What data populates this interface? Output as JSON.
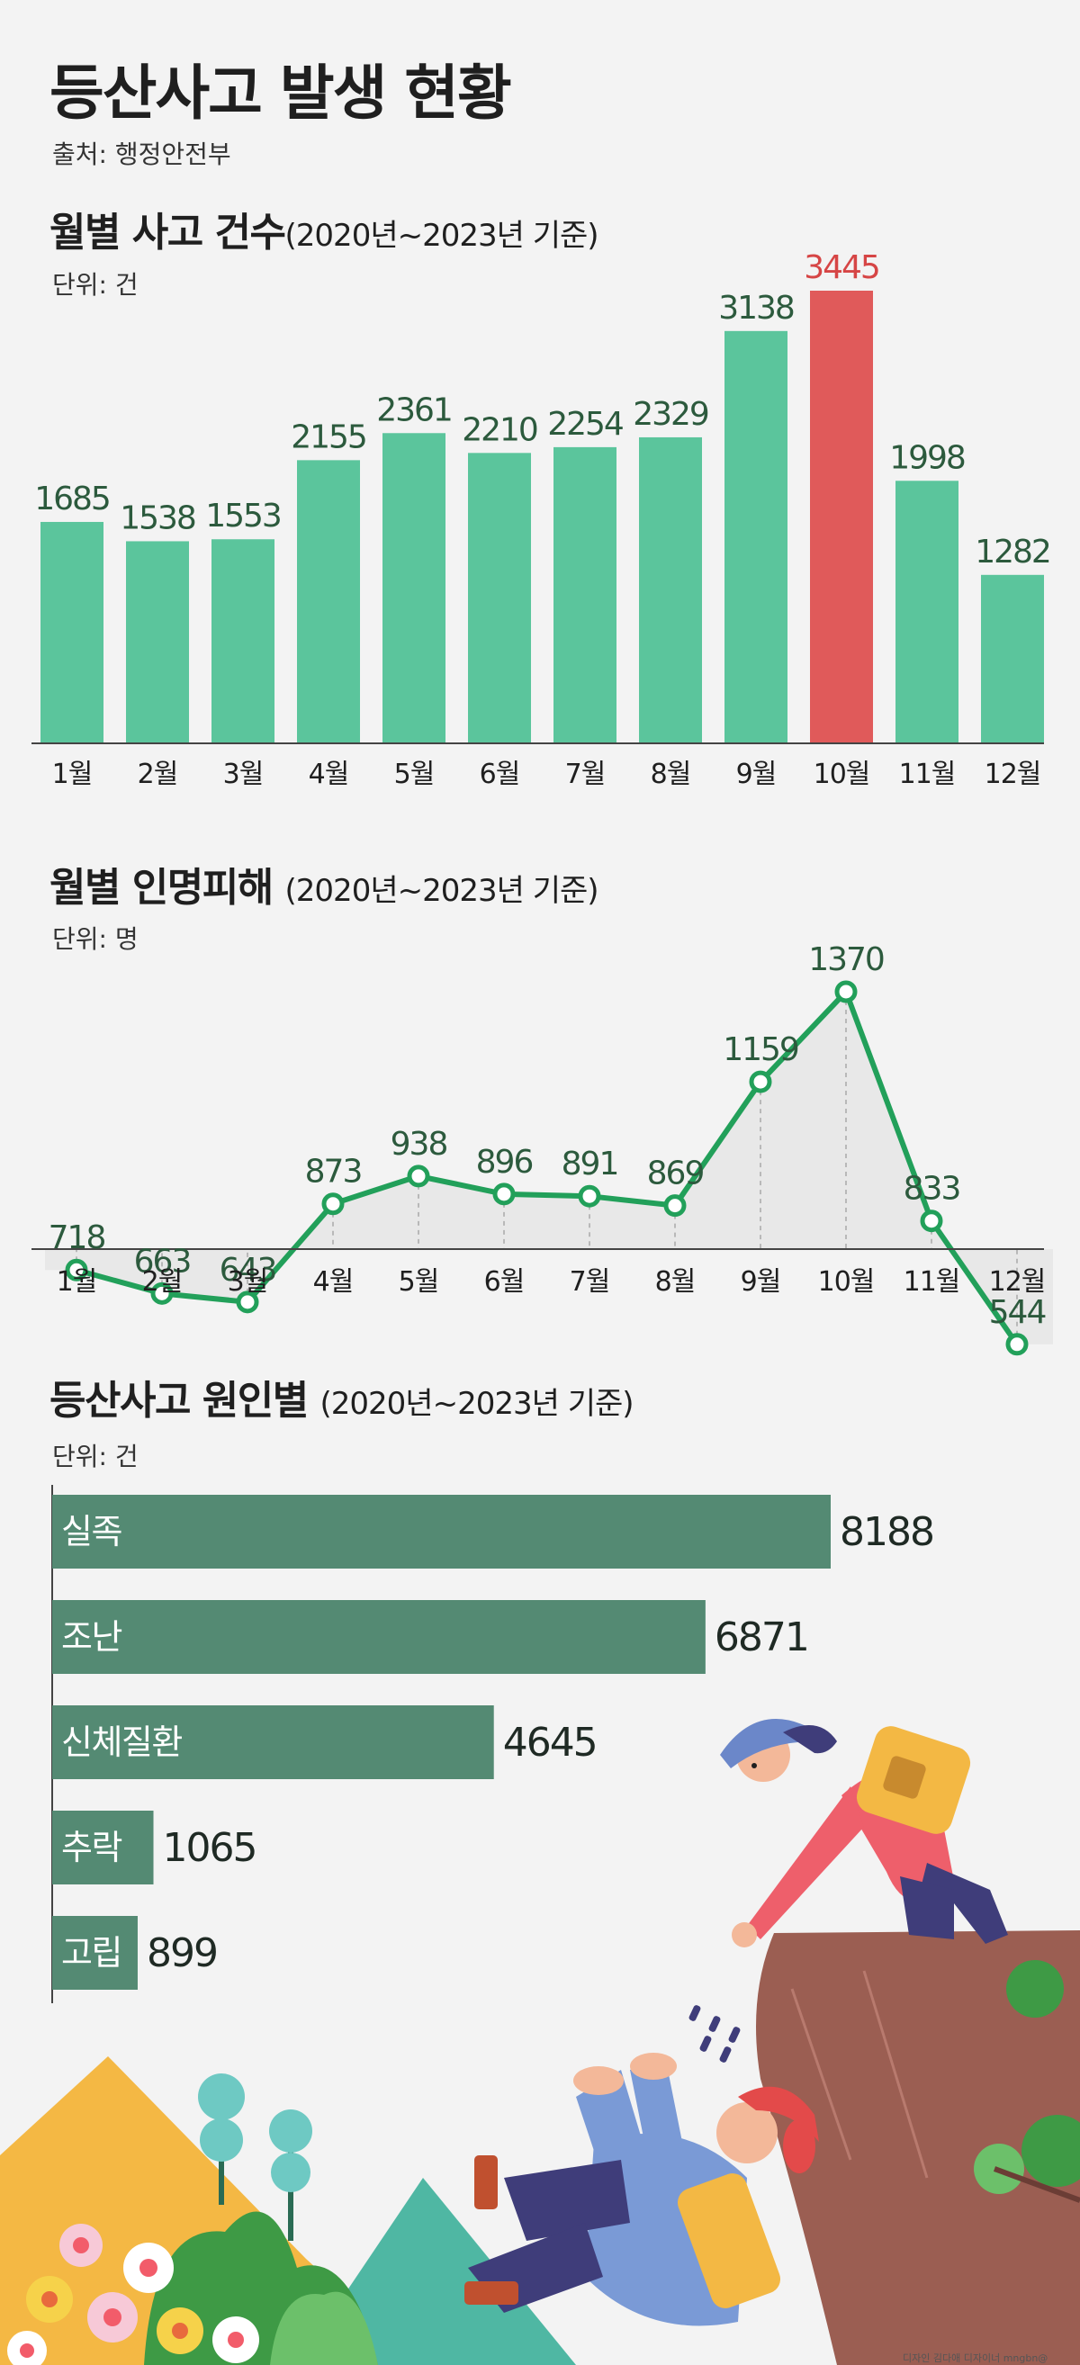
{
  "title": "등산사고 발생 현황",
  "source": "출처: 행정안전부",
  "credit": "디자인 김다애 디자이너 mngbn@",
  "colors": {
    "bar": "#5bc59c",
    "highlight": "#e05a5a",
    "highlight_label": "#d64545",
    "label": "#2c5a3d",
    "line": "#22a05a",
    "area": "#e8e8e8",
    "hbar": "#548a73",
    "axis": "#444444"
  },
  "sections": {
    "monthly_accidents": {
      "title": "월별 사고 건수",
      "subtitle": "(2020년~2023년 기준)",
      "unit": "단위: 건"
    },
    "monthly_casualties": {
      "title": "월별 인명피해",
      "subtitle": "(2020년~2023년 기준)",
      "unit": "단위: 명"
    },
    "causes": {
      "title": "등산사고 원인별",
      "subtitle": "(2020년~2023년 기준)",
      "unit": "단위: 건"
    }
  },
  "chart_data": [
    {
      "type": "bar",
      "categories": [
        "1월",
        "2월",
        "3월",
        "4월",
        "5월",
        "6월",
        "7월",
        "8월",
        "9월",
        "10월",
        "11월",
        "12월"
      ],
      "values": [
        1685,
        1538,
        1553,
        2155,
        2361,
        2210,
        2254,
        2329,
        3138,
        3445,
        1998,
        1282
      ],
      "highlight_index": 9,
      "title": "월별 사고 건수",
      "ylim": [
        0,
        3445
      ],
      "grid": false
    },
    {
      "type": "line",
      "categories": [
        "1월",
        "2월",
        "3월",
        "4월",
        "5월",
        "6월",
        "7월",
        "8월",
        "9월",
        "10월",
        "11월",
        "12월"
      ],
      "values": [
        718,
        663,
        643,
        873,
        938,
        896,
        891,
        869,
        1159,
        1370,
        833,
        544
      ],
      "title": "월별 인명피해",
      "ylim": [
        300,
        1370
      ],
      "grid": false
    },
    {
      "type": "bar",
      "orientation": "horizontal",
      "categories": [
        "실족",
        "조난",
        "신체질환",
        "추락",
        "고립"
      ],
      "values": [
        8188,
        6871,
        4645,
        1065,
        899
      ],
      "title": "등산사고 원인별",
      "xlim": [
        0,
        8188
      ],
      "grid": false
    }
  ]
}
